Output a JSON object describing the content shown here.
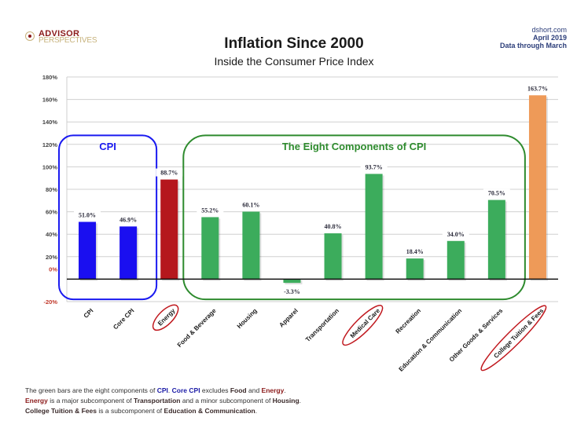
{
  "header": {
    "logo_top": "ADVISOR",
    "logo_bottom": "PERSPECTIVES",
    "source_line1": "dshort.com",
    "source_line2": "April 2019",
    "source_line3": "Data through March"
  },
  "footnote": {
    "line1": [
      {
        "t": "The green bars are the eight components of ",
        "s": ""
      },
      {
        "t": "CPI",
        "s": "blue"
      },
      {
        "t": ". ",
        "s": ""
      },
      {
        "t": "Core CPI",
        "s": "blue"
      },
      {
        "t": " excludes ",
        "s": ""
      },
      {
        "t": "Food",
        "s": "dark"
      },
      {
        "t": " and ",
        "s": ""
      },
      {
        "t": "Energy",
        "s": "red"
      },
      {
        "t": ".",
        "s": ""
      }
    ],
    "line2": [
      {
        "t": "Energy",
        "s": "red"
      },
      {
        "t": " is a major subcomponent of ",
        "s": ""
      },
      {
        "t": "Transportation",
        "s": "dark"
      },
      {
        "t": " and a minor subcomponent of ",
        "s": ""
      },
      {
        "t": "Housing",
        "s": "dark"
      },
      {
        "t": ".",
        "s": ""
      }
    ],
    "line3": [
      {
        "t": "College Tuition & Fees",
        "s": "dark"
      },
      {
        "t": " is a subcomponent of ",
        "s": ""
      },
      {
        "t": "Education & Communication",
        "s": "dark"
      },
      {
        "t": ".",
        "s": ""
      }
    ]
  },
  "chart_data": {
    "type": "bar",
    "title": "Inflation Since 2000",
    "subtitle": "Inside the Consumer Price Index",
    "xlabel": "",
    "ylabel": "",
    "ylim": [
      -20,
      180
    ],
    "yticks": [
      -20,
      0,
      20,
      40,
      60,
      80,
      100,
      120,
      140,
      160,
      180
    ],
    "ytick_labels": [
      "-20%",
      "0%",
      "20%",
      "40%",
      "60%",
      "80%",
      "100%",
      "120%",
      "140%",
      "160%",
      "180%"
    ],
    "grid": true,
    "categories": [
      "CPI",
      "Core CPI",
      "Energy",
      "Food & Beverage",
      "Housing",
      "Apparel",
      "Transportation",
      "Medical Care",
      "Recreation",
      "Education & Communication",
      "Other Goods & Services",
      "College Tuition & Fees"
    ],
    "values": [
      51.0,
      46.9,
      88.7,
      55.2,
      60.1,
      -3.3,
      40.8,
      93.7,
      18.4,
      34.0,
      70.5,
      163.7
    ],
    "value_labels": [
      "51.0%",
      "46.9%",
      "88.7%",
      "55.2%",
      "60.1%",
      "-3.3%",
      "40.8%",
      "93.7%",
      "18.4%",
      "34.0%",
      "70.5%",
      "163.7%"
    ],
    "bar_colors": [
      "#1a0ff0",
      "#1a0ff0",
      "#b5171d",
      "#3cac5c",
      "#3cac5c",
      "#3cac5c",
      "#3cac5c",
      "#3cac5c",
      "#3cac5c",
      "#3cac5c",
      "#3cac5c",
      "#ee9a58"
    ],
    "circled_categories": [
      "Energy",
      "Medical Care",
      "College Tuition & Fees"
    ],
    "annotations": [
      {
        "text": "CPI",
        "color": "#1a1af0",
        "groups": [
          "CPI",
          "Core CPI"
        ]
      },
      {
        "text": "The Eight Components of CPI",
        "color": "#2e8b2e",
        "groups": [
          "Food & Beverage",
          "Housing",
          "Apparel",
          "Transportation",
          "Medical Care",
          "Recreation",
          "Education & Communication",
          "Other Goods & Services"
        ]
      }
    ]
  }
}
